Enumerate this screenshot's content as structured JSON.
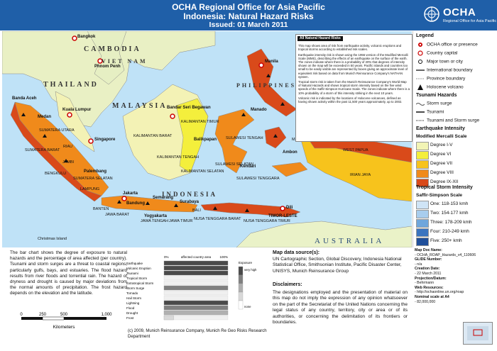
{
  "header": {
    "office": "OCHA Regional Office for Asia Pacific",
    "title": "Indonesia: Natural Hazard Risks",
    "issued": "Issued: 01 March 2011"
  },
  "logo": {
    "name": "OCHA",
    "subtitle": "Regional Office for Asia Pacific"
  },
  "map_labels": {
    "countries": [
      "CAMBODIA",
      "VIET NAM",
      "THAILAND",
      "MALAYSIA",
      "INDONESIA",
      "PHILIPPINES",
      "AUSTRALIA",
      "TIMOR-LESTE"
    ],
    "cities": [
      "Bangkok",
      "Phnom Penh",
      "Kuala Lumpur",
      "Singapore",
      "Bandar Seri Begawan",
      "Manila",
      "Jakarta",
      "Dili",
      "Banda Aceh",
      "Medan",
      "Manado",
      "Bandung",
      "Semarang",
      "Surabaya",
      "Yogyakarta",
      "Balikpapan",
      "Palembang",
      "Ambon",
      "Kendari"
    ],
    "provinces": [
      "SUMATERA UTARA",
      "RIAU",
      "SUMATERA BARAT",
      "JAMBI",
      "BENGKULU",
      "SUMATERA SELATAN",
      "LAMPUNG",
      "KALIMANTAN BARAT",
      "KALIMANTAN TENGAH",
      "KALIMANTAN TIMUR",
      "KALIMANTAN SELATAN",
      "SULAWESI TENGAH",
      "SULAWESI SELATAN",
      "SULAWESI TENGGARA",
      "MALUKU",
      "IRIAN JAYA",
      "NUSA TENGGARA TIMUR",
      "NUSA TENGGARA BARAT",
      "JAWA BARAT",
      "JAWA TENGAH",
      "JAWA TIMUR",
      "BALI",
      "BANTEN",
      "WEST PAPUA"
    ],
    "islands": [
      "Christmas Island"
    ]
  },
  "infobox": {
    "title": "All Natural Hazard Risks",
    "p1": "This map shows area of risk from earthquake activity, volcanic eruptions and tropical storms according to established risk scales.",
    "p2": "Earthquake intensity risk is shown using the 1956 version of the Modified Mercalli Scale (MMS), describing the effects of an earthquake on the surface of the earth. The zones indicate where there is a probability of 20% that degrees of intensity shown on the map will be exceeded in 50 years. Pacific islands and countries too small to be easily visible are represented by boxes giving an approximate level of equivalent risk based on data from Munich Reinsurance Company's NATHAN system.",
    "p3": "Tropical storm risk is taken from the Munich Reinsurance Company's World Map of Natural Hazards and shows tropical storm intensity based on the five wind speeds of the Saffir-Simpson Hurricane Scale. The zones indicate where there is a 10% probability of a storm of this intensity striking in the next 10 years.",
    "p4": "Volcanic risk is indicated by the locations of Holocene volcanoes, defined as having shown activity within the past 11,500 years approximately, up to 2002."
  },
  "legend": {
    "title": "Legend",
    "items": [
      "OCHA office or presence",
      "Country capital",
      "Major town or city",
      "International boundary",
      "Province boundary",
      "Holocene volcano"
    ],
    "tsunami_title": "Tsunami Hazards",
    "tsunami_items": [
      "Storm surge",
      "Tsunami",
      "Tsunami and Storm surge"
    ],
    "eq_title": "Earthquake Intensity",
    "eq_subtitle": "Modified Mercalli Scale",
    "eq_items": [
      {
        "label": "Degree I-V",
        "color": "#f2f4b5"
      },
      {
        "label": "Degree VI",
        "color": "#f4ef3c"
      },
      {
        "label": "Degree VII",
        "color": "#f7c31c"
      },
      {
        "label": "Degree VIII",
        "color": "#f08a1b"
      },
      {
        "label": "Degree IX-XII",
        "color": "#d94a1a"
      }
    ],
    "storm_title": "Tropical Storm Intensity",
    "storm_subtitle": "Saffir-Simpson Scale",
    "storm_items": [
      {
        "label": "One: 118-153 kmh",
        "color": "#cfe4f6"
      },
      {
        "label": "Two: 154-177 kmh",
        "color": "#a8cdee"
      },
      {
        "label": "Three: 178-209 kmh",
        "color": "#6fa6dc"
      },
      {
        "label": "Four: 210-249 kmh",
        "color": "#3a74c0"
      },
      {
        "label": "Five: 250+ kmh",
        "color": "#1f4f9a"
      }
    ]
  },
  "description": "The bar chart shows the degree of exposure to natural hazards and the percentage of area affected (per country). Tsunami and storm surges are a threat to coastal regions, particularly gulfs, bays, and estuaries. The flood hazard results from river floods and torrential rain. The hazard of dryness and drought is caused by major deviations from the normal amounts of precipitation. The frost hazard depends on the elevation and the latitude.",
  "scale": {
    "ticks": [
      "0",
      "250",
      "500",
      "1,000"
    ],
    "unit": "Kilometers"
  },
  "chart_data": {
    "type": "bar",
    "title": "affected country area",
    "xlabel_left": "0%",
    "xlabel_right": "100%",
    "categories": [
      "Earthquake",
      "Volcanic Eruption",
      "Tsunami",
      "Tropical Storm",
      "Extratropical Storm",
      "Storm Surge",
      "Tornado",
      "Hail Storm",
      "Lightning",
      "Flood",
      "Drought",
      "Frost"
    ],
    "values": [
      100,
      100,
      100,
      0,
      0,
      100,
      0,
      0,
      100,
      100,
      100,
      15
    ],
    "levels": [
      4,
      4,
      4,
      0,
      0,
      3,
      0,
      0,
      4,
      3,
      2,
      1
    ],
    "exposure_label": "Exposure",
    "exposure_levels": [
      "very high",
      "none"
    ]
  },
  "copyright": "(c) 2009, Munich Reinsurance Company, Munich Re Geo Risks Research Department",
  "sources": {
    "title": "Map data source(s):",
    "text": "UN Cartographic Section, Global Discovery, Indonesia National Statistical Office, Smithsonian Institute, Pacific Disaster Center, UNISYS, Munich Reinsurance Group"
  },
  "disclaimer": {
    "title": "Disclaimers:",
    "text": "The designations employed and the presentation of material on this map do not imply the expression of any opinion whatsoever on the part of the Secretariat of the United Nations concerning the legal status of any country, territory, city or area or of its authorities, or concerning the delimitation of its frontiers or boundaries."
  },
  "meta": {
    "doc_label": "Map Doc Name:",
    "doc_value": "OCHA_ROAP_Hazards_v4_110606",
    "glide_label": "GLIDE Number:",
    "glide_value": "n/a",
    "creation_label": "Creation Date:",
    "creation_value": "22 March 2011",
    "proj_label": "Projection/Datum:",
    "proj_value": "Behrmann",
    "web_label": "Web Resources:",
    "web_value": "http://ochaonline.un.org/roap",
    "scale_label": "Nominal scale at A4",
    "scale_value": "82,000,000"
  }
}
